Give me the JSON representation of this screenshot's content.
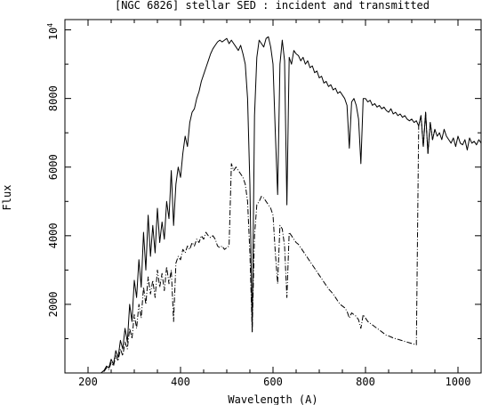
{
  "chart_data": {
    "type": "line",
    "title": "[NGC 6826] stellar SED : incident and transmitted",
    "xlabel": "Wavelength (A)",
    "ylabel": "Flux",
    "xlim": [
      150,
      1050
    ],
    "ylim": [
      0,
      10300
    ],
    "x_ticks": [
      200,
      400,
      600,
      800,
      1000
    ],
    "y_ticks": [
      2000,
      4000,
      6000,
      8000
    ],
    "y_top_tick": {
      "value": 10000,
      "base": "10",
      "exponent": "4"
    },
    "grid": false,
    "series": [
      {
        "style": "solid",
        "points": [
          [
            150,
            0
          ],
          [
            228,
            0
          ],
          [
            235,
            80
          ],
          [
            240,
            200
          ],
          [
            245,
            150
          ],
          [
            250,
            400
          ],
          [
            255,
            250
          ],
          [
            260,
            650
          ],
          [
            265,
            450
          ],
          [
            270,
            950
          ],
          [
            275,
            700
          ],
          [
            280,
            1300
          ],
          [
            285,
            900
          ],
          [
            290,
            2000
          ],
          [
            295,
            1500
          ],
          [
            300,
            2700
          ],
          [
            305,
            2200
          ],
          [
            310,
            3300
          ],
          [
            315,
            2500
          ],
          [
            320,
            4100
          ],
          [
            325,
            3000
          ],
          [
            330,
            4600
          ],
          [
            335,
            3400
          ],
          [
            340,
            4300
          ],
          [
            345,
            3500
          ],
          [
            350,
            4800
          ],
          [
            355,
            3800
          ],
          [
            360,
            4400
          ],
          [
            365,
            3900
          ],
          [
            370,
            5000
          ],
          [
            375,
            4500
          ],
          [
            380,
            5900
          ],
          [
            385,
            4300
          ],
          [
            390,
            5500
          ],
          [
            395,
            6000
          ],
          [
            400,
            5700
          ],
          [
            405,
            6400
          ],
          [
            410,
            6900
          ],
          [
            415,
            6600
          ],
          [
            420,
            7300
          ],
          [
            425,
            7600
          ],
          [
            430,
            7700
          ],
          [
            435,
            8000
          ],
          [
            440,
            8200
          ],
          [
            445,
            8500
          ],
          [
            450,
            8700
          ],
          [
            455,
            8900
          ],
          [
            460,
            9100
          ],
          [
            465,
            9300
          ],
          [
            470,
            9450
          ],
          [
            475,
            9550
          ],
          [
            480,
            9650
          ],
          [
            485,
            9700
          ],
          [
            490,
            9650
          ],
          [
            495,
            9700
          ],
          [
            500,
            9750
          ],
          [
            505,
            9600
          ],
          [
            510,
            9700
          ],
          [
            515,
            9600
          ],
          [
            520,
            9500
          ],
          [
            525,
            9400
          ],
          [
            530,
            9550
          ],
          [
            535,
            9300
          ],
          [
            540,
            9000
          ],
          [
            545,
            8000
          ],
          [
            550,
            5500
          ],
          [
            555,
            1200
          ],
          [
            560,
            7500
          ],
          [
            565,
            9200
          ],
          [
            570,
            9700
          ],
          [
            575,
            9600
          ],
          [
            580,
            9500
          ],
          [
            585,
            9750
          ],
          [
            590,
            9800
          ],
          [
            595,
            9500
          ],
          [
            600,
            9000
          ],
          [
            605,
            7000
          ],
          [
            610,
            5200
          ],
          [
            615,
            9000
          ],
          [
            620,
            9700
          ],
          [
            625,
            9100
          ],
          [
            630,
            4900
          ],
          [
            635,
            9200
          ],
          [
            640,
            9000
          ],
          [
            645,
            9400
          ],
          [
            650,
            9300
          ],
          [
            655,
            9250
          ],
          [
            660,
            9100
          ],
          [
            665,
            9200
          ],
          [
            670,
            9000
          ],
          [
            675,
            9100
          ],
          [
            680,
            8900
          ],
          [
            685,
            8950
          ],
          [
            690,
            8750
          ],
          [
            695,
            8800
          ],
          [
            700,
            8600
          ],
          [
            705,
            8650
          ],
          [
            710,
            8450
          ],
          [
            715,
            8500
          ],
          [
            720,
            8350
          ],
          [
            725,
            8400
          ],
          [
            730,
            8250
          ],
          [
            735,
            8300
          ],
          [
            740,
            8150
          ],
          [
            745,
            8200
          ],
          [
            750,
            8100
          ],
          [
            755,
            8000
          ],
          [
            760,
            7800
          ],
          [
            765,
            6550
          ],
          [
            770,
            7900
          ],
          [
            775,
            8000
          ],
          [
            780,
            7800
          ],
          [
            785,
            7400
          ],
          [
            790,
            6100
          ],
          [
            795,
            8000
          ],
          [
            800,
            8000
          ],
          [
            805,
            7900
          ],
          [
            810,
            7950
          ],
          [
            815,
            7800
          ],
          [
            820,
            7850
          ],
          [
            825,
            7750
          ],
          [
            830,
            7800
          ],
          [
            835,
            7700
          ],
          [
            840,
            7750
          ],
          [
            845,
            7650
          ],
          [
            850,
            7600
          ],
          [
            855,
            7700
          ],
          [
            860,
            7550
          ],
          [
            865,
            7600
          ],
          [
            870,
            7500
          ],
          [
            875,
            7550
          ],
          [
            880,
            7450
          ],
          [
            885,
            7500
          ],
          [
            890,
            7400
          ],
          [
            895,
            7350
          ],
          [
            900,
            7400
          ],
          [
            905,
            7300
          ],
          [
            910,
            7350
          ],
          [
            915,
            7200
          ],
          [
            920,
            7500
          ],
          [
            925,
            6600
          ],
          [
            930,
            7600
          ],
          [
            935,
            6400
          ],
          [
            940,
            7300
          ],
          [
            945,
            6800
          ],
          [
            950,
            7100
          ],
          [
            955,
            6900
          ],
          [
            960,
            7000
          ],
          [
            965,
            6800
          ],
          [
            970,
            7100
          ],
          [
            975,
            6900
          ],
          [
            980,
            6800
          ],
          [
            985,
            6700
          ],
          [
            990,
            6850
          ],
          [
            995,
            6600
          ],
          [
            1000,
            6900
          ],
          [
            1005,
            6700
          ],
          [
            1010,
            6650
          ],
          [
            1015,
            6800
          ],
          [
            1020,
            6500
          ],
          [
            1025,
            6850
          ],
          [
            1030,
            6700
          ],
          [
            1035,
            6750
          ],
          [
            1040,
            6650
          ],
          [
            1045,
            6800
          ],
          [
            1050,
            6700
          ]
        ]
      },
      {
        "style": "dash-dot",
        "points": [
          [
            150,
            0
          ],
          [
            228,
            0
          ],
          [
            235,
            50
          ],
          [
            240,
            150
          ],
          [
            245,
            100
          ],
          [
            250,
            300
          ],
          [
            255,
            200
          ],
          [
            260,
            500
          ],
          [
            265,
            350
          ],
          [
            270,
            700
          ],
          [
            275,
            500
          ],
          [
            280,
            900
          ],
          [
            285,
            700
          ],
          [
            290,
            1300
          ],
          [
            295,
            1000
          ],
          [
            300,
            1700
          ],
          [
            305,
            1300
          ],
          [
            310,
            2000
          ],
          [
            315,
            1600
          ],
          [
            320,
            2500
          ],
          [
            325,
            2000
          ],
          [
            330,
            2800
          ],
          [
            335,
            2300
          ],
          [
            340,
            2700
          ],
          [
            345,
            2200
          ],
          [
            350,
            3000
          ],
          [
            355,
            2500
          ],
          [
            360,
            2900
          ],
          [
            365,
            2400
          ],
          [
            370,
            3100
          ],
          [
            375,
            2600
          ],
          [
            380,
            3000
          ],
          [
            385,
            1500
          ],
          [
            390,
            3200
          ],
          [
            395,
            3400
          ],
          [
            400,
            3300
          ],
          [
            405,
            3600
          ],
          [
            410,
            3500
          ],
          [
            415,
            3700
          ],
          [
            420,
            3600
          ],
          [
            425,
            3800
          ],
          [
            430,
            3700
          ],
          [
            435,
            3900
          ],
          [
            440,
            3800
          ],
          [
            445,
            4000
          ],
          [
            450,
            3900
          ],
          [
            455,
            4100
          ],
          [
            460,
            4000
          ],
          [
            465,
            3950
          ],
          [
            470,
            4000
          ],
          [
            475,
            3900
          ],
          [
            480,
            3700
          ],
          [
            485,
            3650
          ],
          [
            490,
            3700
          ],
          [
            495,
            3600
          ],
          [
            500,
            3650
          ],
          [
            505,
            3700
          ],
          [
            510,
            6100
          ],
          [
            515,
            5900
          ],
          [
            520,
            6000
          ],
          [
            525,
            5900
          ],
          [
            530,
            5800
          ],
          [
            535,
            5700
          ],
          [
            540,
            5500
          ],
          [
            545,
            5000
          ],
          [
            550,
            3500
          ],
          [
            555,
            1200
          ],
          [
            560,
            4000
          ],
          [
            565,
            4900
          ],
          [
            570,
            5000
          ],
          [
            575,
            5150
          ],
          [
            580,
            5100
          ],
          [
            585,
            5000
          ],
          [
            590,
            4900
          ],
          [
            595,
            4800
          ],
          [
            600,
            4600
          ],
          [
            605,
            3500
          ],
          [
            610,
            2600
          ],
          [
            615,
            4300
          ],
          [
            620,
            4200
          ],
          [
            625,
            3700
          ],
          [
            630,
            2200
          ],
          [
            635,
            4100
          ],
          [
            640,
            4000
          ],
          [
            645,
            3900
          ],
          [
            650,
            3800
          ],
          [
            655,
            3750
          ],
          [
            660,
            3650
          ],
          [
            665,
            3550
          ],
          [
            670,
            3450
          ],
          [
            675,
            3350
          ],
          [
            680,
            3250
          ],
          [
            685,
            3150
          ],
          [
            690,
            3050
          ],
          [
            695,
            2950
          ],
          [
            700,
            2850
          ],
          [
            705,
            2750
          ],
          [
            710,
            2650
          ],
          [
            715,
            2550
          ],
          [
            720,
            2450
          ],
          [
            725,
            2380
          ],
          [
            730,
            2300
          ],
          [
            735,
            2200
          ],
          [
            740,
            2100
          ],
          [
            745,
            2000
          ],
          [
            750,
            1950
          ],
          [
            755,
            1900
          ],
          [
            760,
            1800
          ],
          [
            765,
            1600
          ],
          [
            770,
            1750
          ],
          [
            775,
            1700
          ],
          [
            780,
            1650
          ],
          [
            785,
            1550
          ],
          [
            790,
            1300
          ],
          [
            795,
            1700
          ],
          [
            800,
            1600
          ],
          [
            805,
            1500
          ],
          [
            810,
            1450
          ],
          [
            815,
            1400
          ],
          [
            820,
            1350
          ],
          [
            825,
            1300
          ],
          [
            830,
            1250
          ],
          [
            835,
            1200
          ],
          [
            840,
            1150
          ],
          [
            845,
            1100
          ],
          [
            850,
            1080
          ],
          [
            855,
            1050
          ],
          [
            860,
            1020
          ],
          [
            865,
            1000
          ],
          [
            870,
            980
          ],
          [
            875,
            960
          ],
          [
            880,
            940
          ],
          [
            885,
            920
          ],
          [
            890,
            900
          ],
          [
            895,
            880
          ],
          [
            900,
            860
          ],
          [
            905,
            840
          ],
          [
            910,
            820
          ],
          [
            915,
            7200
          ],
          [
            920,
            7500
          ],
          [
            925,
            6600
          ],
          [
            930,
            7600
          ],
          [
            935,
            6400
          ],
          [
            940,
            7300
          ],
          [
            945,
            6800
          ],
          [
            950,
            7100
          ]
        ]
      }
    ]
  }
}
